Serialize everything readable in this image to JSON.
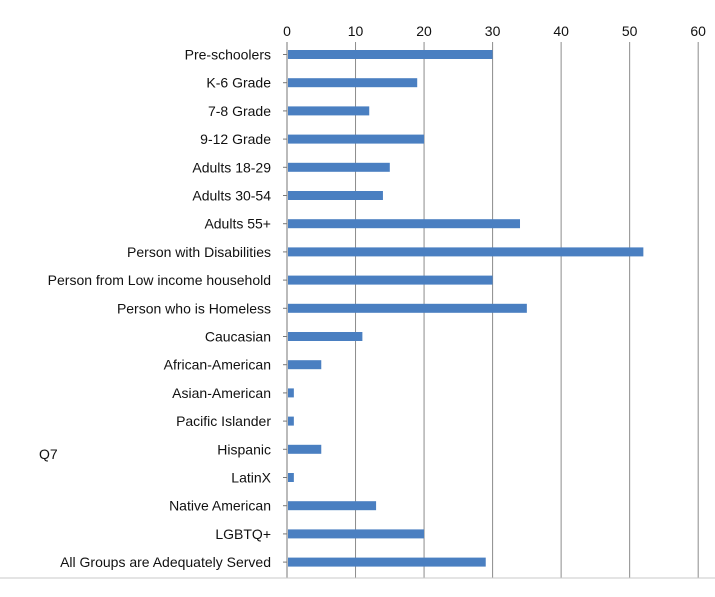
{
  "chart_data": {
    "type": "bar",
    "orientation": "horizontal",
    "side_label": "Q7",
    "categories": [
      "Pre-schoolers",
      "K-6 Grade",
      "7-8 Grade",
      "9-12 Grade",
      "Adults 18-29",
      "Adults 30-54",
      "Adults 55+",
      "Person with Disabilities",
      "Person from Low income household",
      "Person who is Homeless",
      "Caucasian",
      "African-American",
      "Asian-American",
      "Pacific Islander",
      "Hispanic",
      "LatinX",
      "Native American",
      "LGBTQ+",
      "All Groups are Adequately Served"
    ],
    "values": [
      30,
      19,
      12,
      20,
      15,
      14,
      34,
      52,
      30,
      35,
      11,
      5,
      1,
      1,
      5,
      1,
      13,
      20,
      29
    ],
    "xlim": [
      0,
      60
    ],
    "xticks": [
      0,
      10,
      20,
      30,
      40,
      50,
      60
    ],
    "x_axis_position": "top",
    "grid": true,
    "colors": {
      "bar": "#4a7fc1",
      "grid": "#8c8c8c",
      "axis": "#777777"
    }
  }
}
